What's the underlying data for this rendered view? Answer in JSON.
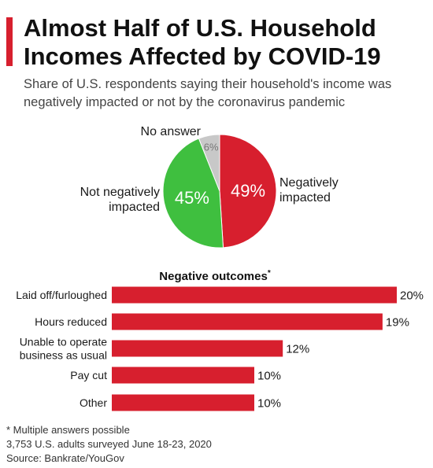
{
  "title": "Almost Half of U.S. Household Incomes Affected by COVID-19",
  "subtitle": "Share of U.S. respondents saying their household's income was negatively impacted or not by the coronavirus pandemic",
  "colors": {
    "accent": "#d71f2e",
    "negative": "#d71f2e",
    "not_negative": "#3fbf3f",
    "no_answer": "#c8c8c8"
  },
  "chart_data": [
    {
      "type": "pie",
      "slices": [
        {
          "label": "Negatively impacted",
          "label_lines": [
            "Negatively",
            "impacted"
          ],
          "value": 49,
          "value_label": "49%",
          "color": "#d71f2e"
        },
        {
          "label": "Not negatively impacted",
          "label_lines": [
            "Not negatively",
            "impacted"
          ],
          "value": 45,
          "value_label": "45%",
          "color": "#3fbf3f"
        },
        {
          "label": "No answer",
          "label_lines": [
            "No answer"
          ],
          "value": 6,
          "value_label": "6%",
          "color": "#c8c8c8"
        }
      ]
    },
    {
      "type": "bar",
      "orientation": "horizontal",
      "title": "Negative outcomes",
      "title_marker": "*",
      "categories": [
        [
          "Laid off/furloughed"
        ],
        [
          "Hours reduced"
        ],
        [
          "Unable to operate",
          "business as usual"
        ],
        [
          "Pay cut"
        ],
        [
          "Other"
        ]
      ],
      "values": [
        20,
        19,
        12,
        10,
        10
      ],
      "value_labels": [
        "20%",
        "19%",
        "12%",
        "10%",
        "10%"
      ],
      "xlim": [
        0,
        20
      ],
      "color": "#d71f2e"
    }
  ],
  "notes": {
    "footnote": "* Multiple answers possible",
    "survey": "3,753 U.S. adults surveyed June 18-23, 2020",
    "source": "Source: Bankrate/YouGov"
  }
}
